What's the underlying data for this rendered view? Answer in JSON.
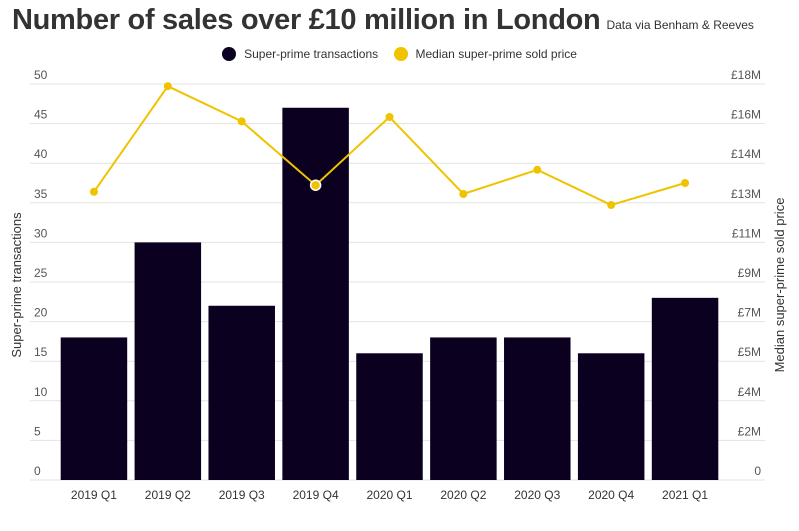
{
  "chart_data": {
    "type": "bar+line",
    "title": "Number of sales over £10 million in London",
    "subtitle": "Data via Benham & Reeves",
    "categories": [
      "2019 Q1",
      "2019 Q2",
      "2019 Q3",
      "2019 Q4",
      "2020 Q1",
      "2020 Q2",
      "2020 Q3",
      "2020 Q4",
      "2021 Q1"
    ],
    "series": [
      {
        "name": "Super-prime transactions",
        "type": "bar",
        "axis": "left",
        "color": "#0c0020",
        "values": [
          18,
          30,
          22,
          47,
          16,
          18,
          18,
          16,
          23
        ]
      },
      {
        "name": "Median super-prime sold price",
        "type": "line",
        "axis": "right",
        "color": "#f0c300",
        "values": [
          13.1,
          17.9,
          16.3,
          13.4,
          16.5,
          13.0,
          14.1,
          12.5,
          13.5
        ],
        "unit": "£M"
      }
    ],
    "ylabel": "Super-prime transactions",
    "ylabel_right": "Median super-prime sold price",
    "ylim": [
      0,
      50
    ],
    "ylim_right": [
      0,
      18
    ],
    "yticks_left": [
      "0",
      "5",
      "10",
      "15",
      "20",
      "25",
      "30",
      "35",
      "40",
      "45",
      "50"
    ],
    "yticks_right": [
      {
        "value": 0,
        "label": "0"
      },
      {
        "value": 1.8,
        "label": "£2M"
      },
      {
        "value": 3.6,
        "label": "£4M"
      },
      {
        "value": 5.4,
        "label": "£5M"
      },
      {
        "value": 7.2,
        "label": "£7M"
      },
      {
        "value": 9.0,
        "label": "£9M"
      },
      {
        "value": 10.8,
        "label": "£11M"
      },
      {
        "value": 12.6,
        "label": "£13M"
      },
      {
        "value": 14.4,
        "label": "£14M"
      },
      {
        "value": 16.2,
        "label": "£16M"
      },
      {
        "value": 18.0,
        "label": "£18M"
      }
    ],
    "highlighted_index": 3,
    "grid": true,
    "legend": "top-center"
  }
}
